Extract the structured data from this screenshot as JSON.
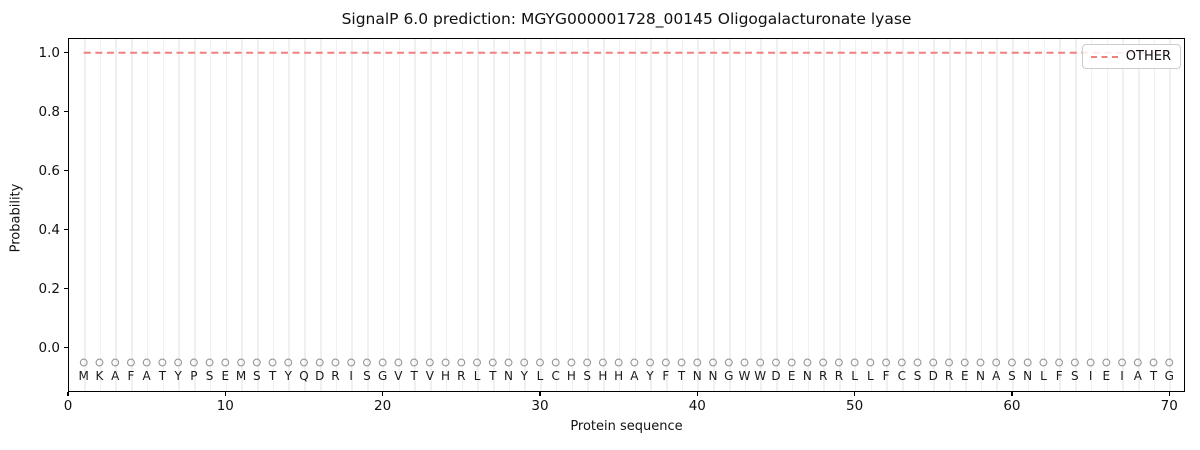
{
  "title": "SignalP 6.0 prediction: MGYG000001728_00145 Oligogalacturonate lyase",
  "colors": {
    "other_line": "#f08080",
    "marker_edge": "#969696",
    "gridline": "#f0f0f0",
    "spine": "#000000",
    "letter": "#1a1a1a",
    "legend_border": "#cccccc"
  },
  "chart_data": {
    "type": "line",
    "title": "SignalP 6.0 prediction: MGYG000001728_00145 Oligogalacturonate lyase",
    "xlabel": "Protein sequence",
    "ylabel": "Probability",
    "xlim": [
      0,
      71
    ],
    "ylim": [
      -0.15,
      1.05
    ],
    "x_ticks": [
      0,
      10,
      20,
      30,
      40,
      50,
      60,
      70
    ],
    "y_ticks": [
      0.0,
      0.2,
      0.4,
      0.6,
      0.8,
      1.0
    ],
    "grid": "vertical gridline at every residue position, light gray",
    "legend": {
      "position": "upper right",
      "entries": [
        {
          "label": "OTHER",
          "color": "#f08080",
          "line_style": "dashed"
        }
      ]
    },
    "sequence": "MKAFATYPSEMSTYQDRISGVTVHRLTNYLCHSHHAYFTNNGWWDENRRLLFCSDRENASNLFSIEIATG",
    "sequence_positions": "1-70",
    "marker_row_y": -0.05,
    "marker_style": "open circle, gray outline",
    "letter_row_y": -0.096,
    "series": [
      {
        "name": "OTHER",
        "color": "#f08080",
        "line_style": "dashed",
        "x_start": 1,
        "x_end": 70,
        "values": [
          1.0,
          1.0,
          1.0,
          1.0,
          1.0,
          1.0,
          1.0,
          1.0,
          1.0,
          1.0,
          1.0,
          1.0,
          1.0,
          1.0,
          1.0,
          1.0,
          1.0,
          1.0,
          1.0,
          1.0,
          1.0,
          1.0,
          1.0,
          1.0,
          1.0,
          1.0,
          1.0,
          1.0,
          1.0,
          1.0,
          1.0,
          1.0,
          1.0,
          1.0,
          1.0,
          1.0,
          1.0,
          1.0,
          1.0,
          1.0,
          1.0,
          1.0,
          1.0,
          1.0,
          1.0,
          1.0,
          1.0,
          1.0,
          1.0,
          1.0,
          1.0,
          1.0,
          1.0,
          1.0,
          1.0,
          1.0,
          1.0,
          1.0,
          1.0,
          1.0,
          1.0,
          1.0,
          1.0,
          1.0,
          1.0,
          1.0,
          1.0,
          1.0,
          1.0,
          1.0
        ]
      }
    ]
  }
}
